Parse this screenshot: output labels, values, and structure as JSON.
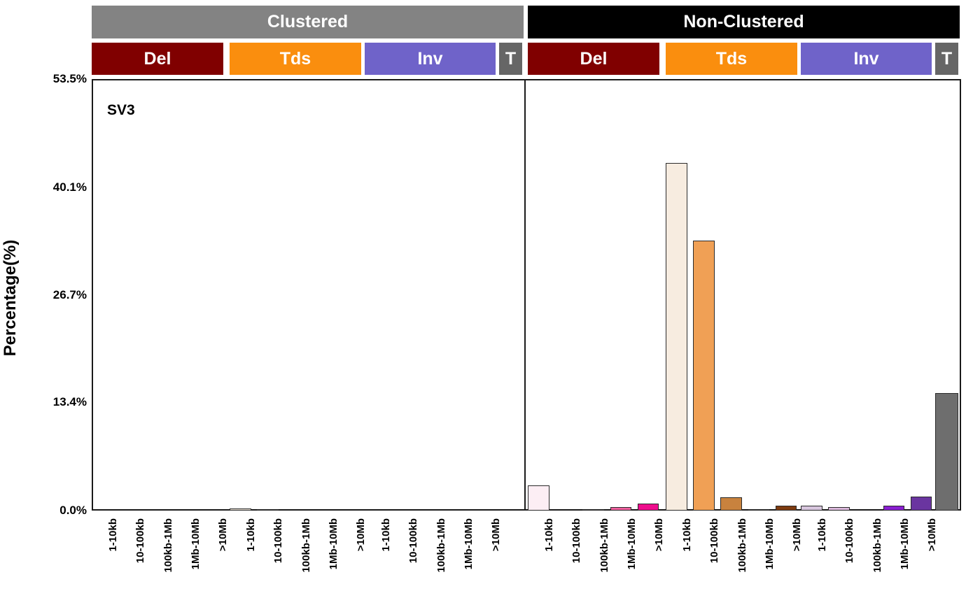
{
  "title": "SV3",
  "ylabel": "Percentage(%)",
  "yticks": [
    {
      "label": "0.0%",
      "value": 0
    },
    {
      "label": "13.4%",
      "value": 13.4
    },
    {
      "label": "26.7%",
      "value": 26.7
    },
    {
      "label": "40.1%",
      "value": 40.1
    },
    {
      "label": "53.5%",
      "value": 53.5
    }
  ],
  "size_categories": [
    "1-10kb",
    "10-100kb",
    "100kb-1Mb",
    "1Mb-10Mb",
    ">10Mb"
  ],
  "colors": {
    "clustered_header": "#838383",
    "non_clustered_header": "#000000",
    "del_header": "#800000",
    "tds_header": "#fa8e0e",
    "inv_header": "#6f63c9",
    "t_header": "#666666",
    "header_text": "#ffffff",
    "grid": "#ededed",
    "axis": "#1a1a1a",
    "bar_border": "#2a2a2a",
    "palettes": {
      "del": [
        "#fceef4",
        "#fac9de",
        "#f79cc3",
        "#f0609f",
        "#ee0d8c"
      ],
      "tds": [
        "#f7ece0",
        "#f0a055",
        "#c8823e",
        "#a05f26",
        "#7e3c10"
      ],
      "inv": [
        "#d8c6de",
        "#dcb9dc",
        "#b48cc8",
        "#8a1fd1",
        "#6a35a0"
      ],
      "t": [
        "#6e6e6e"
      ]
    }
  },
  "chart_data": {
    "type": "bar",
    "title": "SV3",
    "xlabel": "",
    "ylabel": "Percentage(%)",
    "ylim": [
      0,
      53.5
    ],
    "ytick_labels": [
      "0.0%",
      "13.4%",
      "26.7%",
      "40.1%",
      "53.5%"
    ],
    "grid": "horizontal",
    "legend": "none",
    "panels": [
      {
        "label": "Clustered",
        "header_color": "#838383",
        "sections": [
          {
            "label": "Del",
            "header_color": "#800000",
            "palette": "del",
            "categories": [
              "1-10kb",
              "10-100kb",
              "100kb-1Mb",
              "1Mb-10Mb",
              ">10Mb"
            ],
            "values": [
              0,
              0,
              0,
              0,
              0
            ]
          },
          {
            "label": "Tds",
            "header_color": "#fa8e0e",
            "palette": "tds",
            "categories": [
              "1-10kb",
              "10-100kb",
              "100kb-1Mb",
              "1Mb-10Mb",
              ">10Mb"
            ],
            "values": [
              0.3,
              0.2,
              0,
              0,
              0
            ]
          },
          {
            "label": "Inv",
            "header_color": "#6f63c9",
            "palette": "inv",
            "categories": [
              "1-10kb",
              "10-100kb",
              "100kb-1Mb",
              "1Mb-10Mb",
              ">10Mb"
            ],
            "values": [
              0,
              0,
              0,
              0,
              0
            ]
          },
          {
            "label": "T",
            "header_color": "#666666",
            "palette": "t",
            "categories": [],
            "values": [
              0
            ]
          }
        ]
      },
      {
        "label": "Non-Clustered",
        "header_color": "#000000",
        "sections": [
          {
            "label": "Del",
            "header_color": "#800000",
            "palette": "del",
            "categories": [
              "1-10kb",
              "10-100kb",
              "100kb-1Mb",
              "1Mb-10Mb",
              ">10Mb"
            ],
            "values": [
              3.1,
              0,
              0.2,
              0.45,
              0.9
            ]
          },
          {
            "label": "Tds",
            "header_color": "#fa8e0e",
            "palette": "tds",
            "categories": [
              "1-10kb",
              "10-100kb",
              "100kb-1Mb",
              "1Mb-10Mb",
              ">10Mb"
            ],
            "values": [
              43.1,
              33.5,
              1.65,
              0.15,
              0.65
            ]
          },
          {
            "label": "Inv",
            "header_color": "#6f63c9",
            "palette": "inv",
            "categories": [
              "1-10kb",
              "10-100kb",
              "100kb-1Mb",
              "1Mb-10Mb",
              ">10Mb"
            ],
            "values": [
              0.6,
              0.4,
              0,
              0.6,
              1.7
            ]
          },
          {
            "label": "T",
            "header_color": "#666666",
            "palette": "t",
            "categories": [],
            "values": [
              14.6
            ]
          }
        ]
      }
    ]
  }
}
